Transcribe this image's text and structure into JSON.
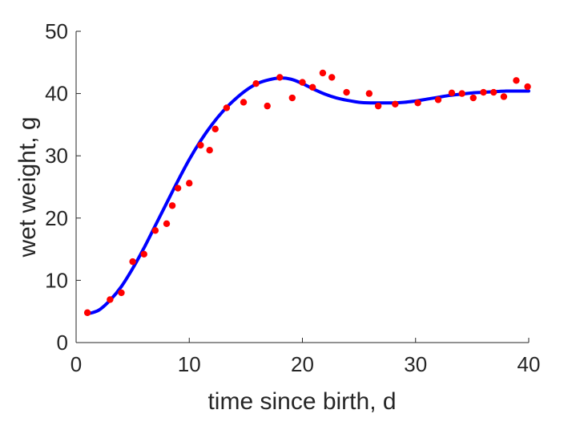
{
  "chart_data": {
    "type": "scatter",
    "title": "",
    "xlabel": "time since birth, d",
    "ylabel": "wet weight, g",
    "xlim": [
      0,
      40
    ],
    "ylim": [
      0,
      50
    ],
    "xticks": [
      0,
      10,
      20,
      30,
      40
    ],
    "yticks": [
      0,
      10,
      20,
      30,
      40,
      50
    ],
    "grid": false,
    "legend": "none",
    "box": "left-bottom axes only",
    "series": [
      {
        "kind": "points",
        "color": "#ff0000",
        "x": [
          1,
          3,
          4,
          5,
          6,
          7,
          8,
          8.5,
          9,
          10,
          11,
          11.8,
          12.3,
          13.3,
          14.8,
          15.9,
          16.9,
          18,
          19.1,
          20,
          20.9,
          21.8,
          22.6,
          23.9,
          25.9,
          26.7,
          28.2,
          30.2,
          32,
          33.2,
          34.1,
          35.1,
          36,
          36.9,
          37.8,
          38.9,
          39.9
        ],
        "y": [
          4.8,
          6.9,
          8.0,
          13.0,
          14.2,
          18.0,
          19.1,
          22.0,
          24.8,
          25.6,
          31.7,
          30.9,
          34.3,
          37.7,
          38.6,
          41.6,
          38.0,
          42.6,
          39.3,
          41.8,
          41.0,
          43.3,
          42.6,
          40.2,
          40.0,
          38.0,
          38.3,
          38.5,
          39.0,
          40.1,
          40.0,
          39.3,
          40.2,
          40.2,
          39.5,
          42.1,
          41.1
        ]
      },
      {
        "kind": "line",
        "color": "#0000ff",
        "x": [
          1,
          2,
          3,
          4,
          5,
          6,
          7,
          8,
          9,
          10,
          11,
          12,
          13,
          14,
          15,
          16,
          17,
          18,
          19,
          20,
          21,
          22,
          23,
          24,
          25,
          26,
          27,
          28,
          29,
          30,
          31,
          32,
          33,
          34,
          35,
          36,
          37,
          38,
          39,
          40
        ],
        "y": [
          4.6,
          5.2,
          6.8,
          9.0,
          11.9,
          15.2,
          18.8,
          22.4,
          26.0,
          29.4,
          32.4,
          35.0,
          37.2,
          39.0,
          40.5,
          41.6,
          42.2,
          42.5,
          42.3,
          41.6,
          40.7,
          39.9,
          39.3,
          38.9,
          38.6,
          38.5,
          38.5,
          38.5,
          38.6,
          38.8,
          39.1,
          39.4,
          39.7,
          39.9,
          40.1,
          40.2,
          40.3,
          40.4,
          40.4,
          40.4
        ]
      }
    ]
  }
}
